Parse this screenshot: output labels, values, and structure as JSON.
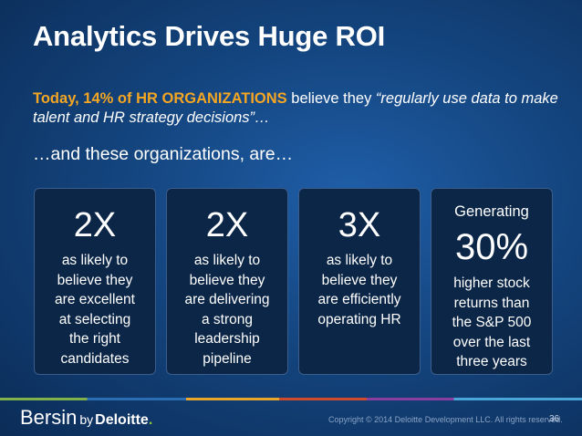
{
  "title": "Analytics Drives Huge ROI",
  "intro": {
    "prefix": "Today, 14% of HR ORGANIZATIONS",
    "middle": " believe they ",
    "quote": "“regularly use data to make talent and HR strategy decisions”…"
  },
  "lead": "…and these organizations, are…",
  "cards": [
    {
      "big": "2X",
      "desc": [
        "as likely to",
        "believe they",
        "are excellent",
        "at selecting",
        "the right",
        "candidates"
      ]
    },
    {
      "big": "2X",
      "desc": [
        "as likely to",
        "believe they",
        "are delivering",
        "a strong",
        "leadership",
        "pipeline"
      ]
    },
    {
      "big": "3X",
      "desc": [
        "as likely to",
        "believe they",
        "are efficiently",
        "operating HR"
      ]
    },
    {
      "pre": "Generating",
      "big": "30%",
      "desc": [
        "higher stock",
        "returns than",
        "the S&P 500",
        "over the last",
        "three years"
      ]
    }
  ],
  "footer": {
    "logo_main": "Bersin",
    "logo_by": "by",
    "logo_deloitte": "Deloitte",
    "logo_dot": ".",
    "copyright": "Copyright © 2014 Deloitte Development LLC. All rights reserved.",
    "page_number": "36"
  },
  "colors": {
    "highlight": "#f5a623",
    "card_bg": "#0c2647",
    "background": "#14457f"
  }
}
